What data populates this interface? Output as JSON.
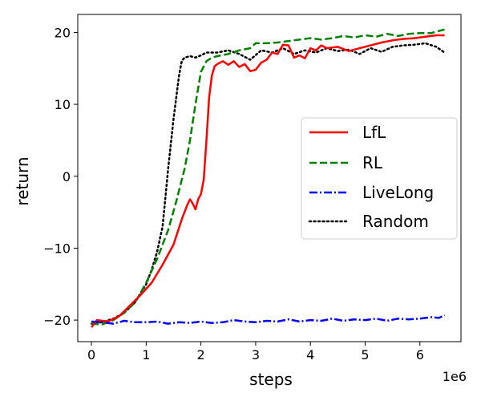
{
  "chart_data": {
    "type": "line",
    "xlabel": "steps",
    "ylabel": "return",
    "x_offset_label": "1e6",
    "xlim": [
      -0.25,
      6.75
    ],
    "ylim": [
      -23,
      22.5
    ],
    "xticks": [
      0,
      1,
      2,
      3,
      4,
      5,
      6
    ],
    "yticks": [
      -20,
      -10,
      0,
      10,
      20
    ],
    "ytick_labels": [
      "−20",
      "−10",
      "0",
      "10",
      "20"
    ],
    "grid": false,
    "legend_position": "right",
    "series": [
      {
        "name": "LfL",
        "color": "#ff0000",
        "style": "solid",
        "x": [
          0,
          0.1,
          0.3,
          0.5,
          0.7,
          0.9,
          1.1,
          1.3,
          1.5,
          1.65,
          1.75,
          1.8,
          1.85,
          1.9,
          1.95,
          2.0,
          2.05,
          2.1,
          2.15,
          2.2,
          2.25,
          2.3,
          2.4,
          2.5,
          2.6,
          2.7,
          2.8,
          2.9,
          3.0,
          3.1,
          3.2,
          3.3,
          3.4,
          3.5,
          3.6,
          3.7,
          3.8,
          3.9,
          4.0,
          4.1,
          4.2,
          4.3,
          4.5,
          4.7,
          4.9,
          5.1,
          5.3,
          5.5,
          5.7,
          5.9,
          6.1,
          6.3,
          6.45
        ],
        "y": [
          -21,
          -20,
          -20.2,
          -19.5,
          -18,
          -16.5,
          -14.8,
          -12.3,
          -9.5,
          -6,
          -4,
          -3.2,
          -3.8,
          -4.6,
          -3.2,
          -2.5,
          -0.5,
          5,
          11,
          14,
          15.3,
          15.6,
          16,
          15.5,
          16,
          15.2,
          15.6,
          14.6,
          14.8,
          15.8,
          16.2,
          17.2,
          17,
          18.3,
          18.2,
          16.5,
          16.8,
          16.4,
          17.8,
          17.5,
          18.2,
          17.8,
          18,
          17.4,
          17.8,
          18.2,
          18.6,
          18.9,
          19.1,
          19.2,
          19.4,
          19.6,
          19.6
        ]
      },
      {
        "name": "RL",
        "color": "#008000",
        "style": "dashed",
        "x": [
          0,
          0.2,
          0.4,
          0.6,
          0.8,
          1.0,
          1.2,
          1.4,
          1.55,
          1.65,
          1.7,
          1.8,
          1.9,
          2.0,
          2.1,
          2.2,
          2.3,
          2.5,
          2.7,
          2.9,
          3.0,
          3.2,
          3.4,
          3.6,
          3.8,
          4.0,
          4.2,
          4.4,
          4.6,
          4.8,
          5.0,
          5.2,
          5.4,
          5.6,
          5.8,
          6.0,
          6.2,
          6.35,
          6.45
        ],
        "y": [
          -20.5,
          -20.6,
          -20,
          -19,
          -17.5,
          -14.8,
          -11.5,
          -7.5,
          -3.5,
          -0.5,
          1,
          5,
          10,
          14.5,
          16,
          16.5,
          16.7,
          17,
          17.5,
          17.8,
          18.5,
          18.5,
          18.6,
          18.8,
          19,
          19.2,
          19,
          19.2,
          19.5,
          19.3,
          19.6,
          19.4,
          19.8,
          19.5,
          19.8,
          19.9,
          19.9,
          20.2,
          20.4
        ]
      },
      {
        "name": "LiveLong",
        "color": "#0000ff",
        "style": "dashdot",
        "x": [
          0,
          0.2,
          0.4,
          0.6,
          0.8,
          1.0,
          1.2,
          1.4,
          1.6,
          1.8,
          2.0,
          2.2,
          2.4,
          2.6,
          2.8,
          3.0,
          3.2,
          3.4,
          3.6,
          3.8,
          4.0,
          4.2,
          4.4,
          4.6,
          4.8,
          5.0,
          5.2,
          5.4,
          5.6,
          5.8,
          6.0,
          6.2,
          6.35,
          6.45
        ],
        "y": [
          -20.2,
          -20.3,
          -20.5,
          -20.1,
          -20.3,
          -20.3,
          -20.2,
          -20.5,
          -20.3,
          -20.4,
          -20.2,
          -20.4,
          -20.3,
          -20.0,
          -20.2,
          -20.3,
          -20.1,
          -20.2,
          -19.9,
          -20.2,
          -20.0,
          -20.1,
          -19.8,
          -20.1,
          -19.9,
          -20.0,
          -19.8,
          -20.1,
          -19.8,
          -19.9,
          -19.8,
          -19.6,
          -19.7,
          -19.3
        ]
      },
      {
        "name": "Random",
        "color": "#000000",
        "style": "dotted",
        "x": [
          0,
          0.2,
          0.4,
          0.6,
          0.8,
          1.0,
          1.1,
          1.2,
          1.3,
          1.35,
          1.4,
          1.5,
          1.6,
          1.65,
          1.7,
          1.8,
          1.9,
          2.0,
          2.1,
          2.3,
          2.5,
          2.7,
          2.9,
          3.1,
          3.3,
          3.5,
          3.7,
          3.9,
          4.1,
          4.3,
          4.5,
          4.7,
          4.9,
          5.1,
          5.3,
          5.5,
          5.7,
          5.9,
          6.1,
          6.3,
          6.45
        ],
        "y": [
          -20.5,
          -20.3,
          -19.8,
          -19,
          -17.5,
          -15,
          -13,
          -10.5,
          -7,
          -3,
          1,
          8,
          14,
          16,
          16.5,
          16.7,
          16.5,
          16.8,
          17.2,
          17.2,
          17.5,
          17,
          16.2,
          17.5,
          17.2,
          17.8,
          17,
          17.5,
          17.2,
          17.8,
          17.4,
          17.6,
          17,
          17.8,
          17.3,
          18,
          18.2,
          18.3,
          18.5,
          18,
          17.2
        ]
      }
    ]
  }
}
